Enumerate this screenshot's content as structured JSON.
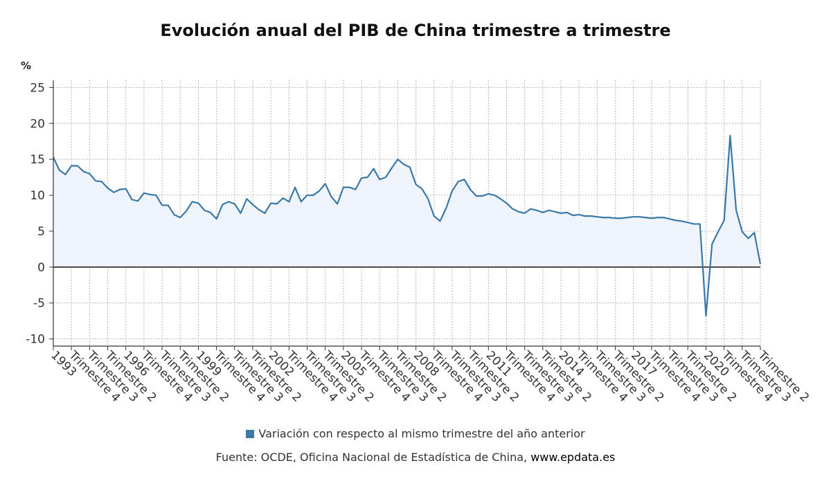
{
  "title": "Evolución anual del PIB de China trimestre a trimestre",
  "legend": {
    "label": "Variación con respecto al mismo trimestre del año anterior"
  },
  "source": {
    "prefix": "Fuente: OCDE, Oficina Nacional de Estadística de China,",
    "site": "www.epdata.es"
  },
  "colors": {
    "line": "#3a78a8",
    "fill": "#eef4f9",
    "grid": "#b5b5b5",
    "zero": "#222222",
    "swatch": "#3a78a8"
  },
  "chart_data": {
    "type": "area",
    "ylabel": "%",
    "ylim": [
      -11,
      26
    ],
    "yticks": [
      25,
      20,
      15,
      10,
      5,
      0,
      -5,
      -10
    ],
    "grid": true,
    "legend_position": "bottom",
    "x_tick_labels": [
      "1993",
      "Trimestre 4",
      "Trimestre 3",
      "Trimestre 2",
      "1996",
      "Trimestre 4",
      "Trimestre 3",
      "Trimestre 2",
      "1999",
      "Trimestre 4",
      "Trimestre 3",
      "Trimestre 2",
      "2002",
      "Trimestre 4",
      "Trimestre 3",
      "Trimestre 2",
      "2005",
      "Trimestre 4",
      "Trimestre 3",
      "Trimestre 2",
      "2008",
      "Trimestre 4",
      "Trimestre 3",
      "Trimestre 2",
      "2011",
      "Trimestre 4",
      "Trimestre 3",
      "Trimestre 2",
      "2014",
      "Trimestre 4",
      "Trimestre 3",
      "Trimestre 2",
      "2017",
      "Trimestre 4",
      "Trimestre 3",
      "Trimestre 2",
      "2020",
      "Trimestre 4",
      "Trimestre 3",
      "Trimestre 2"
    ],
    "x_tick_every": 3,
    "series": [
      {
        "name": "Variación con respecto al mismo trimestre del año anterior",
        "values": [
          15.3,
          13.5,
          12.9,
          14.1,
          14.1,
          13.3,
          13.0,
          12.0,
          11.9,
          11.0,
          10.4,
          10.8,
          10.9,
          9.4,
          9.2,
          10.3,
          10.1,
          10.0,
          8.6,
          8.6,
          7.3,
          6.9,
          7.8,
          9.1,
          8.9,
          7.9,
          7.6,
          6.7,
          8.7,
          9.1,
          8.8,
          7.5,
          9.5,
          8.7,
          8.0,
          7.5,
          8.9,
          8.8,
          9.6,
          9.1,
          11.1,
          9.1,
          10.0,
          10.0,
          10.6,
          11.6,
          9.8,
          8.8,
          11.1,
          11.1,
          10.8,
          12.4,
          12.5,
          13.7,
          12.2,
          12.5,
          13.8,
          15.0,
          14.3,
          13.9,
          11.5,
          10.9,
          9.5,
          7.1,
          6.4,
          8.2,
          10.6,
          11.9,
          12.2,
          10.8,
          9.9,
          9.9,
          10.2,
          10.0,
          9.5,
          8.9,
          8.1,
          7.7,
          7.5,
          8.1,
          7.9,
          7.6,
          7.9,
          7.7,
          7.5,
          7.6,
          7.2,
          7.3,
          7.1,
          7.1,
          7.0,
          6.9,
          6.9,
          6.8,
          6.8,
          6.9,
          7.0,
          7.0,
          6.9,
          6.8,
          6.9,
          6.9,
          6.7,
          6.5,
          6.4,
          6.2,
          6.0,
          6.0,
          -6.8,
          3.2,
          4.9,
          6.5,
          18.3,
          7.9,
          4.9,
          4.0,
          4.8,
          0.4
        ]
      }
    ]
  }
}
